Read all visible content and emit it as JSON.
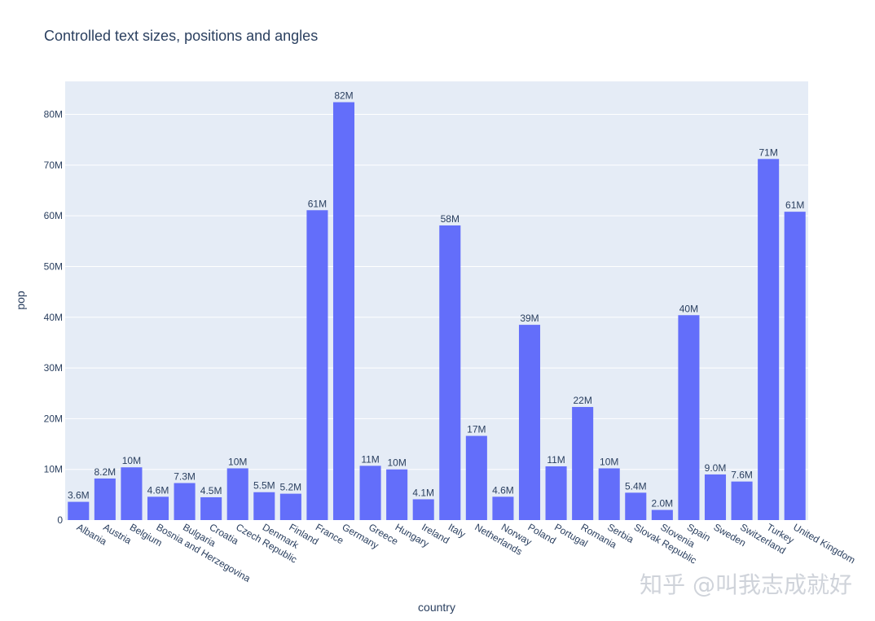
{
  "watermark": "知乎 @叫我志成就好",
  "chart_data": {
    "type": "bar",
    "title": "Controlled text sizes, positions and angles",
    "xlabel": "country",
    "ylabel": "pop",
    "ylim": [
      0,
      86.5
    ],
    "yticks": [
      0,
      10,
      20,
      30,
      40,
      50,
      60,
      70,
      80
    ],
    "ytick_labels": [
      "0",
      "10M",
      "20M",
      "30M",
      "40M",
      "50M",
      "60M",
      "70M",
      "80M"
    ],
    "categories": [
      "Albania",
      "Austria",
      "Belgium",
      "Bosnia and Herzegovina",
      "Bulgaria",
      "Croatia",
      "Czech Republic",
      "Denmark",
      "Finland",
      "France",
      "Germany",
      "Greece",
      "Hungary",
      "Ireland",
      "Italy",
      "Netherlands",
      "Norway",
      "Poland",
      "Portugal",
      "Romania",
      "Serbia",
      "Slovak Republic",
      "Slovenia",
      "Spain",
      "Sweden",
      "Switzerland",
      "Turkey",
      "United Kingdom"
    ],
    "values": [
      3.6,
      8.2,
      10.4,
      4.6,
      7.3,
      4.5,
      10.2,
      5.5,
      5.2,
      61.1,
      82.4,
      10.7,
      10.0,
      4.1,
      58.1,
      16.6,
      4.6,
      38.5,
      10.6,
      22.3,
      10.2,
      5.4,
      2.0,
      40.4,
      9.0,
      7.6,
      71.2,
      60.8
    ],
    "data_labels": [
      "3.6M",
      "8.2M",
      "10M",
      "4.6M",
      "7.3M",
      "4.5M",
      "10M",
      "5.5M",
      "5.2M",
      "61M",
      "82M",
      "11M",
      "10M",
      "4.1M",
      "58M",
      "17M",
      "4.6M",
      "39M",
      "11M",
      "22M",
      "10M",
      "5.4M",
      "2.0M",
      "40M",
      "9.0M",
      "7.6M",
      "71M",
      "61M"
    ],
    "bar_color": "#636efa",
    "plot_bg": "#e5ecf6",
    "grid": true,
    "legend": "none"
  }
}
